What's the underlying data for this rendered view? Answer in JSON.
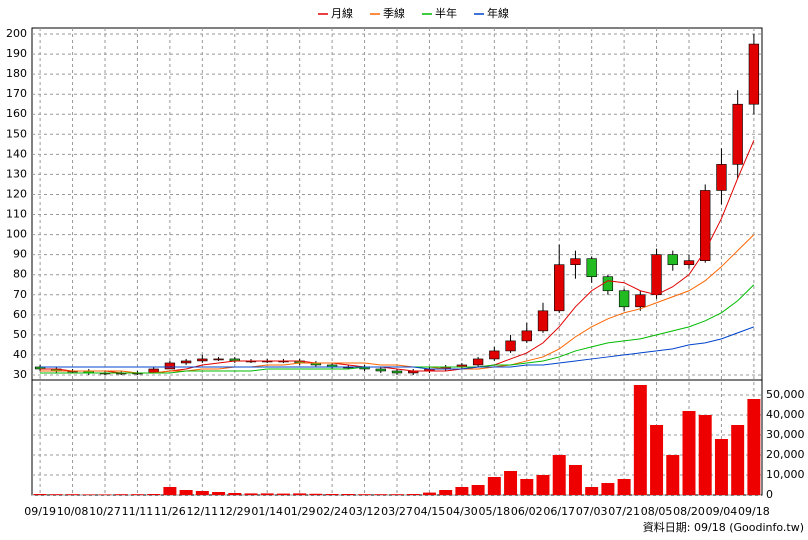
{
  "chart_data": {
    "type": "candlestick",
    "categories": [
      "09/19",
      null,
      "10/08",
      null,
      "10/27",
      null,
      "11/11",
      null,
      "11/26",
      null,
      "12/11",
      null,
      "12/29",
      null,
      "01/14",
      null,
      "01/29",
      null,
      "02/24",
      null,
      "03/12",
      null,
      "03/27",
      null,
      "04/15",
      null,
      "04/30",
      null,
      "05/18",
      null,
      "06/02",
      null,
      "06/17",
      null,
      "07/03",
      null,
      "07/21",
      null,
      "08/05",
      null,
      "08/20",
      null,
      "09/04",
      null,
      "09/18"
    ],
    "open": [
      34,
      33,
      32,
      32,
      31,
      31,
      31,
      31,
      33,
      36,
      37,
      38,
      38,
      37,
      37,
      37,
      37,
      36,
      35,
      34,
      34,
      33,
      32,
      31,
      32,
      33,
      34,
      35,
      38,
      42,
      47,
      52,
      62,
      85,
      88,
      79,
      72,
      64,
      70,
      90,
      85,
      87,
      122,
      135,
      165
    ],
    "high": [
      35,
      34,
      33,
      33,
      32,
      32,
      32,
      34,
      37,
      38,
      40,
      39,
      39,
      38,
      38,
      38,
      38,
      37,
      36,
      35,
      35,
      34,
      33,
      33,
      34,
      35,
      36,
      39,
      44,
      50,
      56,
      66,
      95,
      92,
      89,
      80,
      73,
      72,
      93,
      92,
      90,
      125,
      143,
      172,
      200
    ],
    "low": [
      32,
      31,
      31,
      30,
      30,
      30,
      30,
      31,
      33,
      35,
      36,
      37,
      36,
      36,
      36,
      36,
      35,
      34,
      33,
      33,
      32,
      31,
      30,
      30,
      31,
      32,
      33,
      34,
      37,
      41,
      46,
      51,
      61,
      78,
      76,
      70,
      62,
      62,
      68,
      82,
      83,
      86,
      115,
      128,
      160
    ],
    "close": [
      33,
      32,
      32,
      31,
      31,
      31,
      31,
      33,
      36,
      37,
      38,
      38,
      37,
      37,
      37,
      37,
      36,
      35,
      34,
      34,
      33,
      32,
      31,
      32,
      33,
      34,
      35,
      38,
      42,
      47,
      52,
      62,
      85,
      88,
      79,
      72,
      64,
      70,
      90,
      85,
      87,
      122,
      135,
      165,
      195
    ],
    "up_color": "#e00000",
    "down_color": "#22bb22",
    "series": [
      {
        "name": "月線",
        "color": "#e00000",
        "values": [
          33,
          33,
          32,
          32,
          32,
          31,
          31,
          31,
          32,
          33,
          35,
          36,
          37,
          37,
          37,
          37,
          37,
          36,
          36,
          35,
          34,
          34,
          33,
          32,
          32,
          32,
          33,
          34,
          35,
          38,
          41,
          46,
          54,
          64,
          72,
          77,
          76,
          72,
          70,
          74,
          80,
          92,
          108,
          128,
          147
        ]
      },
      {
        "name": "季線",
        "color": "#ff6600",
        "values": [
          32,
          32,
          32,
          32,
          32,
          32,
          31,
          31,
          32,
          32,
          33,
          33,
          34,
          34,
          35,
          35,
          36,
          36,
          36,
          36,
          36,
          35,
          35,
          34,
          34,
          33,
          33,
          33,
          34,
          35,
          37,
          39,
          43,
          49,
          54,
          58,
          61,
          63,
          66,
          69,
          72,
          77,
          84,
          92,
          100
        ]
      },
      {
        "name": "半年",
        "color": "#00bb00",
        "values": [
          31,
          31,
          31,
          31,
          31,
          31,
          31,
          31,
          31,
          32,
          32,
          32,
          32,
          32,
          33,
          33,
          33,
          33,
          33,
          33,
          34,
          34,
          34,
          34,
          34,
          34,
          34,
          34,
          35,
          35,
          36,
          37,
          39,
          42,
          44,
          46,
          47,
          48,
          50,
          52,
          54,
          57,
          61,
          67,
          75
        ]
      },
      {
        "name": "年線",
        "color": "#0044cc",
        "values": [
          34,
          34,
          34,
          34,
          34,
          34,
          34,
          34,
          34,
          34,
          34,
          34,
          34,
          34,
          34,
          34,
          34,
          34,
          34,
          34,
          34,
          34,
          34,
          34,
          33,
          33,
          33,
          34,
          34,
          34,
          35,
          35,
          36,
          37,
          38,
          39,
          40,
          41,
          42,
          43,
          45,
          46,
          48,
          51,
          54
        ]
      }
    ],
    "volume": [
      500,
      400,
      400,
      300,
      300,
      400,
      400,
      500,
      4000,
      2500,
      2000,
      1500,
      1000,
      800,
      800,
      700,
      800,
      600,
      500,
      500,
      400,
      400,
      400,
      500,
      1200,
      2500,
      4000,
      5000,
      9000,
      12000,
      8000,
      10000,
      20000,
      15000,
      4000,
      6000,
      8000,
      55000,
      35000,
      20000,
      42000,
      40000,
      28000,
      35000,
      48000
    ],
    "volume_color": "#ee0000",
    "ylim": [
      27.5,
      203
    ],
    "yticks": [
      30,
      40,
      50,
      60,
      70,
      80,
      90,
      100,
      110,
      120,
      130,
      140,
      150,
      160,
      170,
      180,
      190,
      200
    ],
    "y2lim": [
      0,
      57500
    ],
    "y2ticks": [
      0,
      {
        "value": 10000,
        "label": "10,000"
      },
      {
        "value": 20000,
        "label": "20,000"
      },
      {
        "value": 30000,
        "label": "30,000"
      },
      {
        "value": 40000,
        "label": "40,000"
      },
      {
        "value": 50000,
        "label": "50,000"
      }
    ],
    "grid": true,
    "footer": "資料日期: 09/18 (Goodinfo.tw)"
  }
}
